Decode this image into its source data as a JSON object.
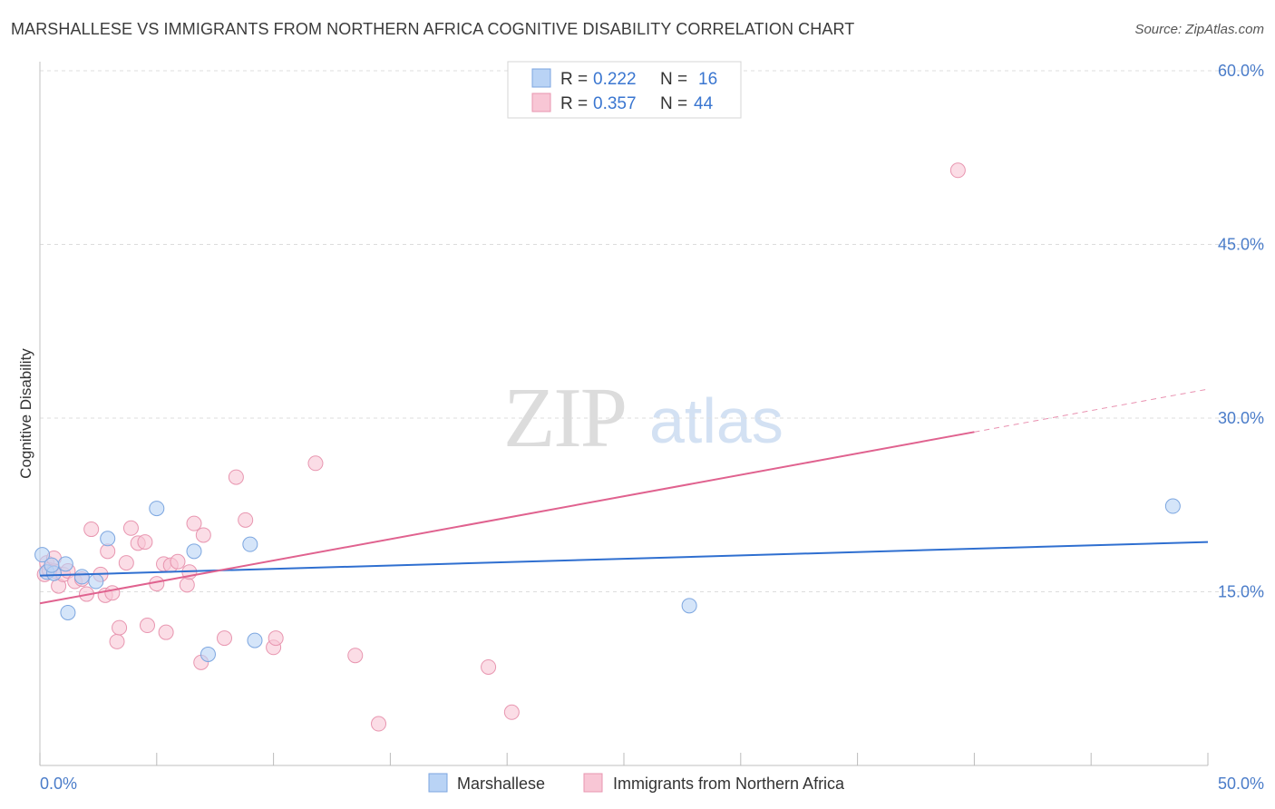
{
  "header": {
    "title": "MARSHALLESE VS IMMIGRANTS FROM NORTHERN AFRICA COGNITIVE DISABILITY CORRELATION CHART",
    "source": "Source: ZipAtlas.com"
  },
  "watermark": {
    "zip": "ZIP",
    "atlas": "atlas"
  },
  "legend": {
    "rows": [
      {
        "r_label": "R =",
        "r_value": "0.222",
        "n_label": "N =",
        "n_value": "16"
      },
      {
        "r_label": "R =",
        "r_value": "0.357",
        "n_label": "N =",
        "n_value": "44"
      }
    ]
  },
  "colors": {
    "marshallese_fill": "#b9d3f5",
    "marshallese_stroke": "#7ca6e0",
    "marshallese_line": "#2f6fd0",
    "africa_fill": "#f8c6d5",
    "africa_stroke": "#e896b0",
    "africa_line": "#e0628f",
    "grid": "#dddddd",
    "tick_text": "#4a7cc9"
  },
  "chart_data": {
    "type": "scatter",
    "title": "MARSHALLESE VS IMMIGRANTS FROM NORTHERN AFRICA COGNITIVE DISABILITY CORRELATION CHART",
    "xlabel": "",
    "ylabel": "Cognitive Disability",
    "xlim": [
      0,
      50
    ],
    "ylim": [
      0,
      60
    ],
    "x_tick_labels": [
      "0.0%",
      "50.0%"
    ],
    "y_ticks": [
      15,
      30,
      45,
      60
    ],
    "y_tick_labels": [
      "15.0%",
      "30.0%",
      "45.0%",
      "60.0%"
    ],
    "grid": true,
    "legend_position": "top-center",
    "series": [
      {
        "name": "Marshallese",
        "points": [
          [
            0.1,
            18.2
          ],
          [
            0.3,
            16.7
          ],
          [
            0.6,
            16.6
          ],
          [
            1.1,
            17.4
          ],
          [
            1.2,
            13.2
          ],
          [
            1.8,
            16.3
          ],
          [
            2.4,
            15.9
          ],
          [
            2.9,
            19.6
          ],
          [
            5.0,
            22.2
          ],
          [
            6.6,
            18.5
          ],
          [
            7.2,
            9.6
          ],
          [
            9.0,
            19.1
          ],
          [
            9.2,
            10.8
          ],
          [
            27.8,
            13.8
          ],
          [
            48.5,
            22.4
          ],
          [
            0.5,
            17.3
          ]
        ],
        "trend": {
          "x": [
            0,
            50
          ],
          "y": [
            16.4,
            19.3
          ]
        }
      },
      {
        "name": "Immigrants from Northern Africa",
        "points": [
          [
            0.2,
            16.5
          ],
          [
            0.3,
            17.5
          ],
          [
            0.4,
            16.9
          ],
          [
            0.6,
            16.8
          ],
          [
            0.8,
            15.5
          ],
          [
            1.0,
            16.5
          ],
          [
            1.2,
            16.8
          ],
          [
            1.5,
            15.9
          ],
          [
            1.8,
            16.1
          ],
          [
            2.0,
            14.8
          ],
          [
            2.2,
            20.4
          ],
          [
            2.6,
            16.5
          ],
          [
            2.8,
            14.7
          ],
          [
            2.9,
            18.5
          ],
          [
            3.1,
            14.9
          ],
          [
            3.3,
            10.7
          ],
          [
            3.4,
            11.9
          ],
          [
            3.7,
            17.5
          ],
          [
            3.9,
            20.5
          ],
          [
            4.2,
            19.2
          ],
          [
            4.5,
            19.3
          ],
          [
            4.6,
            12.1
          ],
          [
            5.0,
            15.7
          ],
          [
            5.3,
            17.4
          ],
          [
            5.4,
            11.5
          ],
          [
            5.6,
            17.3
          ],
          [
            5.9,
            17.6
          ],
          [
            6.3,
            15.6
          ],
          [
            6.4,
            16.7
          ],
          [
            6.6,
            20.9
          ],
          [
            6.9,
            8.9
          ],
          [
            7.0,
            19.9
          ],
          [
            7.9,
            11.0
          ],
          [
            8.4,
            24.9
          ],
          [
            8.8,
            21.2
          ],
          [
            10.0,
            10.2
          ],
          [
            10.1,
            11.0
          ],
          [
            11.8,
            26.1
          ],
          [
            13.5,
            9.5
          ],
          [
            14.5,
            3.6
          ],
          [
            19.2,
            8.5
          ],
          [
            20.2,
            4.6
          ],
          [
            39.3,
            51.4
          ],
          [
            0.6,
            17.9
          ]
        ],
        "trend": {
          "x": [
            0,
            40
          ],
          "y": [
            14.0,
            28.8
          ]
        },
        "trend_dashed": {
          "x": [
            40,
            50
          ],
          "y": [
            28.8,
            32.5
          ]
        }
      }
    ]
  },
  "bottom_legend": {
    "items": [
      {
        "label": "Marshallese"
      },
      {
        "label": "Immigrants from Northern Africa"
      }
    ]
  }
}
